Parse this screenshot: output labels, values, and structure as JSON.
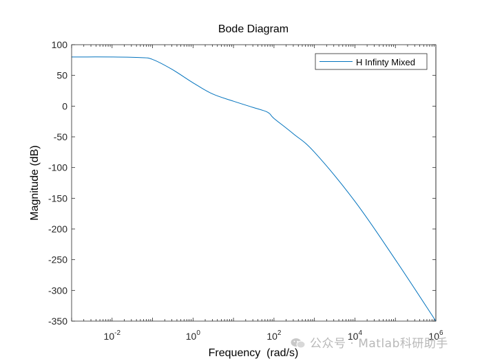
{
  "chart_data": {
    "type": "line",
    "title": "Bode Diagram",
    "xlabel": "Frequency  (rad/s)",
    "ylabel": "Magnitude (dB)",
    "xscale": "log",
    "xlim": [
      0.001,
      1000000
    ],
    "ylim": [
      -350,
      100
    ],
    "yticks": [
      "100",
      "50",
      "0",
      "-50",
      "-100",
      "-150",
      "-200",
      "-250",
      "-300",
      "-350"
    ],
    "xticks": [
      {
        "base": "10",
        "exp": "-2",
        "value": 0.01
      },
      {
        "base": "10",
        "exp": "0",
        "value": 1
      },
      {
        "base": "10",
        "exp": "2",
        "value": 100
      },
      {
        "base": "10",
        "exp": "4",
        "value": 10000
      },
      {
        "base": "10",
        "exp": "6",
        "value": 1000000
      }
    ],
    "legend": {
      "position": "top-right",
      "entries": [
        "H Infinty Mixed"
      ]
    },
    "series": [
      {
        "name": "H Infinty Mixed",
        "color": "#0072BD",
        "x": [
          0.001,
          0.01,
          0.05,
          0.1,
          0.3,
          1,
          3,
          10,
          30,
          70,
          100,
          300,
          1000,
          10000,
          100000,
          1000000
        ],
        "y": [
          80,
          80,
          79,
          76,
          60,
          38,
          20,
          8,
          -2,
          -10,
          -20,
          -45,
          -75,
          -155,
          -250,
          -350
        ]
      }
    ]
  },
  "watermark": {
    "text": "公众号 · Matlab科研助手"
  },
  "colors": {
    "axis": "#262626",
    "line": "#0072BD",
    "watermark": "#b8b8b8"
  }
}
